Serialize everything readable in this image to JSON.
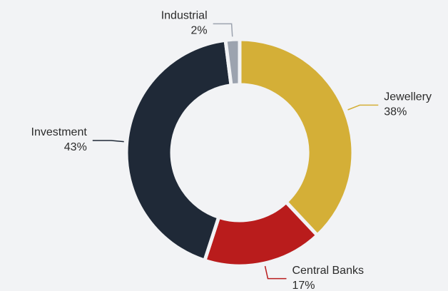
{
  "chart_data": {
    "type": "donut",
    "categories": [
      "Jewellery",
      "Central Banks",
      "Investment",
      "Industrial"
    ],
    "values": [
      38,
      17,
      43,
      2
    ],
    "value_labels": [
      "38%",
      "17%",
      "43%",
      "2%"
    ],
    "colors": [
      "#d4af37",
      "#b91c1c",
      "#1f2937",
      "#9ca3af"
    ]
  }
}
